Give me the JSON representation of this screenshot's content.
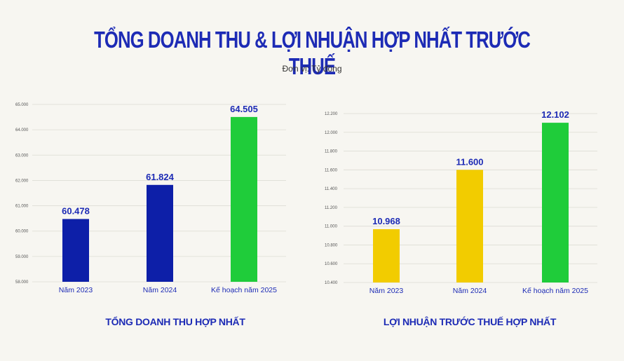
{
  "title": "TỔNG DOANH THU & LỢI NHUẬN HỢP NHẤT TRƯỚC THUẾ",
  "unit": "Đơn vị: Tỷ đồng",
  "colors": {
    "blue": "#0d1fa8",
    "green": "#1fcc3a",
    "yellow": "#f2cc00",
    "label": "#1d2bb5"
  },
  "chart_data": [
    {
      "type": "bar",
      "title": "TỔNG DOANH THU HỢP NHẤT",
      "categories": [
        "Năm 2023",
        "Năm 2024",
        "Kế hoạch năm 2025"
      ],
      "values": [
        60478,
        61824,
        64505
      ],
      "value_labels": [
        "60.478",
        "61.824",
        "64.505"
      ],
      "bar_colors": [
        "#0d1fa8",
        "#0d1fa8",
        "#1fcc3a"
      ],
      "ylim": [
        58000,
        65000
      ],
      "yticks": [
        58000,
        59000,
        60000,
        61000,
        62000,
        63000,
        64000,
        65000
      ],
      "ytick_labels": [
        "58.000",
        "59.000",
        "60.000",
        "61.000",
        "62.000",
        "63.000",
        "64.000",
        "65.000"
      ],
      "grid": true
    },
    {
      "type": "bar",
      "title": "LỢI NHUẬN TRƯỚC THUẾ HỢP NHẤT",
      "categories": [
        "Năm 2023",
        "Năm 2024",
        "Kế hoạch năm 2025"
      ],
      "values": [
        10968,
        11600,
        12102
      ],
      "value_labels": [
        "10.968",
        "11.600",
        "12.102"
      ],
      "bar_colors": [
        "#f2cc00",
        "#f2cc00",
        "#1fcc3a"
      ],
      "ylim": [
        10400,
        12200
      ],
      "yticks": [
        10400,
        10600,
        10800,
        11000,
        11200,
        11400,
        11600,
        11800,
        12000,
        12200
      ],
      "ytick_labels": [
        "10.400",
        "10.600",
        "10.800",
        "11.000",
        "11.200",
        "11.400",
        "11.600",
        "11.800",
        "12.000",
        "12.200"
      ],
      "grid": true
    }
  ]
}
